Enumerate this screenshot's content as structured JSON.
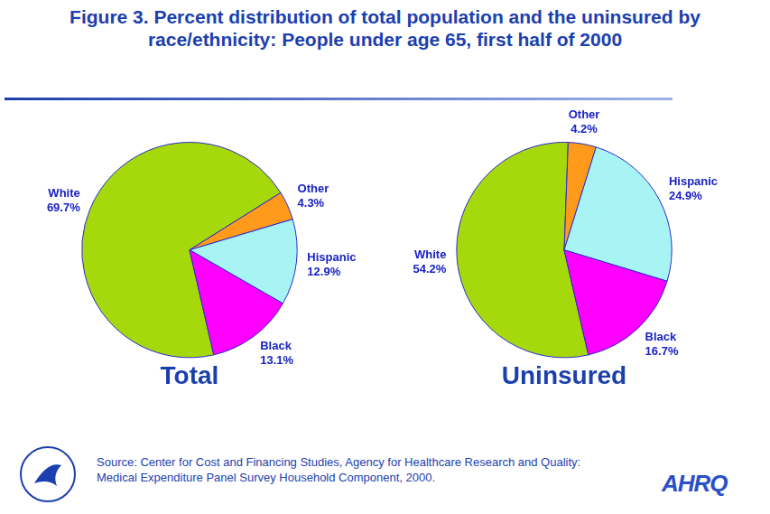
{
  "title": "Figure 3. Percent distribution of total population and the uninsured by race/ethnicity: People under age 65, first half of 2000",
  "source": "Source: Center for Cost and Financing Studies, Agency for Healthcare Research and Quality:\nMedical Expenditure Panel Survey Household Component, 2000.",
  "logo": "AHRQ",
  "chart_data": [
    {
      "type": "pie",
      "title": "Total",
      "categories": [
        "White",
        "Other",
        "Hispanic",
        "Black"
      ],
      "values": [
        69.7,
        4.3,
        12.9,
        13.1
      ],
      "value_labels": [
        "69.7%",
        "4.3%",
        "12.9%",
        "13.1%"
      ],
      "colors": [
        "#a6d90b",
        "#ff9a1a",
        "#a8f4f4",
        "#ff00ff"
      ],
      "data_labels": true,
      "legend": false
    },
    {
      "type": "pie",
      "title": "Uninsured",
      "categories": [
        "White",
        "Other",
        "Hispanic",
        "Black"
      ],
      "values": [
        54.2,
        4.2,
        24.9,
        16.7
      ],
      "value_labels": [
        "54.2%",
        "4.2%",
        "24.9%",
        "16.7%"
      ],
      "colors": [
        "#a6d90b",
        "#ff9a1a",
        "#a8f4f4",
        "#ff00ff"
      ],
      "data_labels": true,
      "legend": false
    }
  ]
}
